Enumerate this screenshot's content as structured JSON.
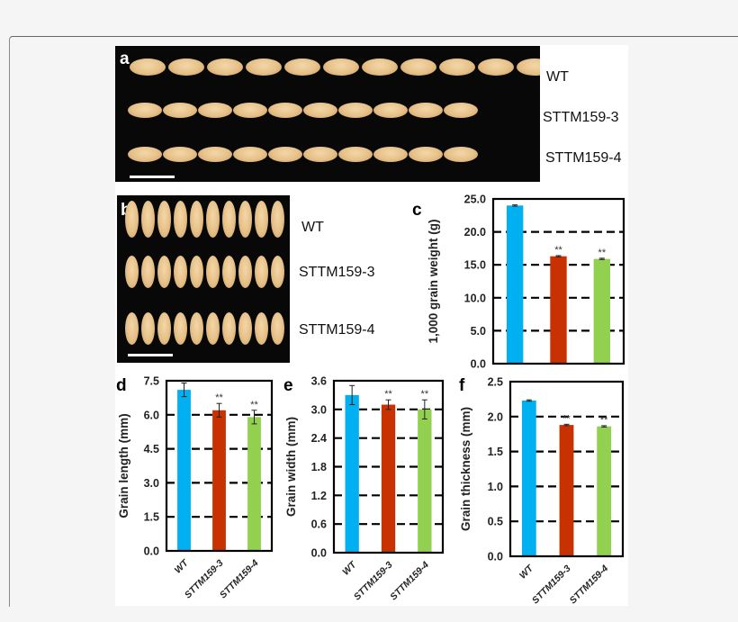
{
  "figure": {
    "panel_a": {
      "letter": "a",
      "labels": [
        "WT",
        "STTM159-3",
        "STTM159-4"
      ],
      "grain_counts": [
        11,
        10,
        10
      ]
    },
    "panel_b": {
      "letter": "b",
      "labels": [
        "WT",
        "STTM159-3",
        "STTM159-4"
      ],
      "grain_counts": [
        10,
        10,
        10
      ]
    },
    "colors": {
      "WT": "#00b0f0",
      "STTM159-3": "#c83200",
      "STTM159-4": "#92d050"
    }
  },
  "chart_data": [
    {
      "panel": "c",
      "type": "bar",
      "categories": [
        "WT",
        "STTM159-3",
        "STTM159-4"
      ],
      "values": [
        24.0,
        16.3,
        15.9
      ],
      "errors": [
        0.1,
        0.1,
        0.1
      ],
      "significance": [
        "",
        "**",
        "**"
      ],
      "ylabel": "1,000 grain weight (g)",
      "yticks": [
        "0.0",
        "5.0",
        "10.0",
        "15.0",
        "20.0",
        "25.0"
      ],
      "ylim": [
        0,
        25
      ],
      "grid": "dashed",
      "show_xlabels": false
    },
    {
      "panel": "d",
      "type": "bar",
      "categories": [
        "WT",
        "STTM159-3",
        "STTM159-4"
      ],
      "values": [
        7.1,
        6.2,
        5.9
      ],
      "errors": [
        0.3,
        0.3,
        0.3
      ],
      "significance": [
        "",
        "**",
        "**"
      ],
      "ylabel": "Grain length (mm)",
      "yticks": [
        "0.0",
        "1.5",
        "3.0",
        "4.5",
        "6.0",
        "7.5"
      ],
      "ylim": [
        0,
        7.5
      ],
      "grid": "dashed",
      "show_xlabels": true
    },
    {
      "panel": "e",
      "type": "bar",
      "categories": [
        "WT",
        "STTM159-3",
        "STTM159-4"
      ],
      "values": [
        3.3,
        3.1,
        3.0
      ],
      "errors": [
        0.2,
        0.1,
        0.2
      ],
      "significance": [
        "",
        "**",
        "**"
      ],
      "ylabel": "Grain width (mm)",
      "yticks": [
        "0.0",
        "0.6",
        "1.2",
        "1.8",
        "2.4",
        "3.0",
        "3.6"
      ],
      "ylim": [
        0,
        3.6
      ],
      "grid": "dashed",
      "show_xlabels": true
    },
    {
      "panel": "f",
      "type": "bar",
      "categories": [
        "WT",
        "STTM159-3",
        "STTM159-4"
      ],
      "values": [
        2.23,
        1.88,
        1.86
      ],
      "errors": [
        0.01,
        0.01,
        0.01
      ],
      "significance": [
        "",
        "**",
        "**"
      ],
      "ylabel": "Grain thickness (mm)",
      "yticks": [
        "0.0",
        "0.5",
        "1.0",
        "1.5",
        "2.0",
        "2.5"
      ],
      "ylim": [
        0,
        2.5
      ],
      "grid": "dashed",
      "show_xlabels": true
    }
  ]
}
